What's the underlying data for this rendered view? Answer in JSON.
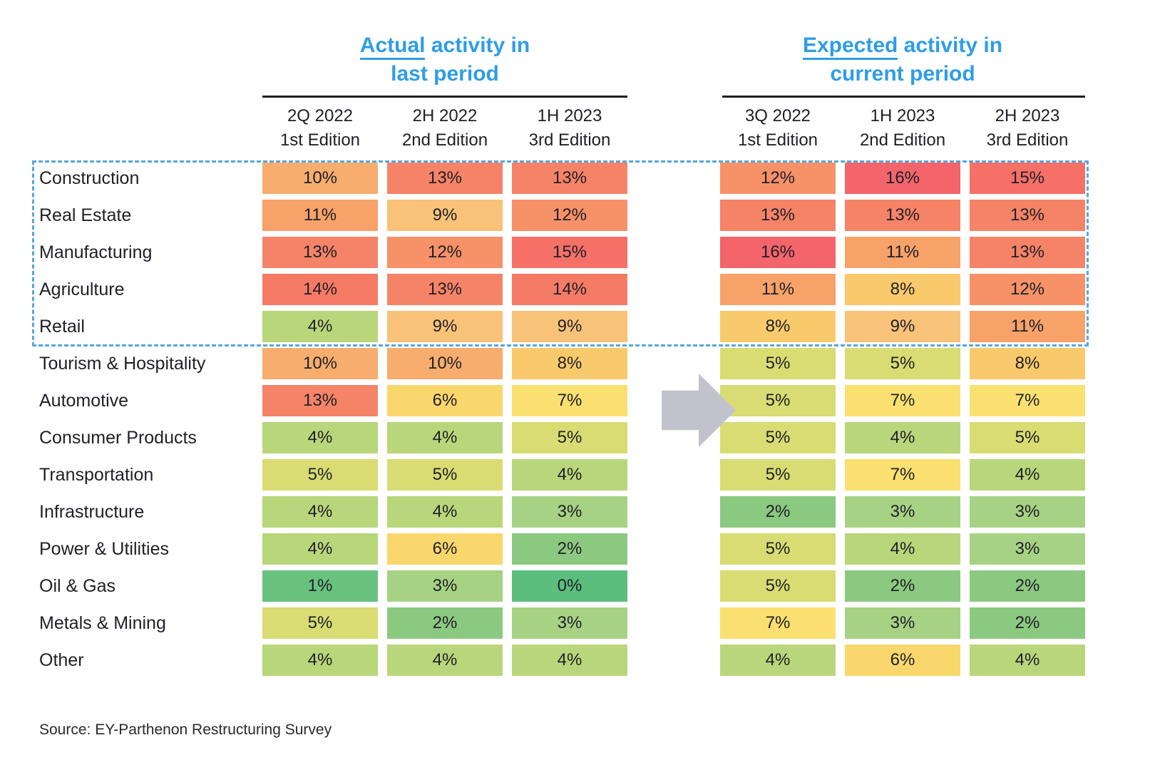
{
  "header": {
    "left_title": {
      "underlined_word": "Actual",
      "rest": " activity in",
      "line2": "last period"
    },
    "right_title": {
      "underlined_word": "Expected",
      "rest": " activity in",
      "line2": "current period"
    },
    "left_columns": [
      {
        "period": "2Q 2022",
        "edition": "1st Edition"
      },
      {
        "period": "2H 2022",
        "edition": "2nd Edition"
      },
      {
        "period": "1H 2023",
        "edition": "3rd Edition"
      }
    ],
    "right_columns": [
      {
        "period": "3Q 2022",
        "edition": "1st Edition"
      },
      {
        "period": "1H 2023",
        "edition": "2nd Edition"
      },
      {
        "period": "2H 2023",
        "edition": "3rd Edition"
      }
    ]
  },
  "source": "Source: EY-Parthenon Restructuring Survey",
  "colors": {
    "title_blue": "#2e9de6",
    "dashed_box_blue": "#58a6dc",
    "arrow_gray": "#c2c2cc",
    "rule_black": "#1b1b1b",
    "text_dark": "#1f1f27",
    "scale": {
      "0": "#5cbe7d",
      "1": "#68c27e",
      "2": "#8cc980",
      "3": "#a7d284",
      "4": "#b9d67b",
      "5": "#d8dc73",
      "6": "#f9d76d",
      "7": "#f9e070",
      "8": "#f9ca6c",
      "9": "#f8c278",
      "10": "#f6ad6d",
      "11": "#f7a269",
      "12": "#f69168",
      "13": "#f58367",
      "14": "#f57b65",
      "15": "#f57067",
      "16": "#f4646b"
    }
  },
  "chart_data": {
    "type": "heatmap",
    "unit": "%",
    "title_groups": [
      "Actual activity in last period",
      "Expected activity in current period"
    ],
    "columns": [
      "2Q 2022 1st Edition",
      "2H 2022 2nd Edition",
      "1H 2023 3rd Edition",
      "3Q 2022 1st Edition",
      "1H 2023 2nd Edition",
      "2H 2023 3rd Edition"
    ],
    "rows": [
      {
        "sector": "Construction",
        "values": [
          10,
          13,
          13,
          12,
          16,
          15
        ]
      },
      {
        "sector": "Real Estate",
        "values": [
          11,
          9,
          12,
          13,
          13,
          13
        ]
      },
      {
        "sector": "Manufacturing",
        "values": [
          13,
          12,
          15,
          16,
          11,
          13
        ]
      },
      {
        "sector": "Agriculture",
        "values": [
          14,
          13,
          14,
          11,
          8,
          12
        ]
      },
      {
        "sector": "Retail",
        "values": [
          4,
          9,
          9,
          8,
          9,
          11
        ]
      },
      {
        "sector": "Tourism & Hospitality",
        "values": [
          10,
          10,
          8,
          5,
          5,
          8
        ]
      },
      {
        "sector": "Automotive",
        "values": [
          13,
          6,
          7,
          5,
          7,
          7
        ]
      },
      {
        "sector": "Consumer Products",
        "values": [
          4,
          4,
          5,
          5,
          4,
          5
        ]
      },
      {
        "sector": "Transportation",
        "values": [
          5,
          5,
          4,
          5,
          7,
          4
        ]
      },
      {
        "sector": "Infrastructure",
        "values": [
          4,
          4,
          3,
          2,
          3,
          3
        ]
      },
      {
        "sector": "Power & Utilities",
        "values": [
          4,
          6,
          2,
          5,
          4,
          3
        ]
      },
      {
        "sector": "Oil & Gas",
        "values": [
          1,
          3,
          0,
          5,
          2,
          2
        ]
      },
      {
        "sector": "Metals & Mining",
        "values": [
          5,
          2,
          3,
          7,
          3,
          2
        ]
      },
      {
        "sector": "Other",
        "values": [
          4,
          4,
          4,
          4,
          6,
          4
        ]
      }
    ],
    "highlighted_sectors": [
      "Construction",
      "Real Estate",
      "Manufacturing",
      "Agriculture",
      "Retail"
    ],
    "color_scale_semantics": {
      "low_is_green": 0,
      "high_is_red": 16
    },
    "source": "EY-Parthenon Restructuring Survey"
  }
}
